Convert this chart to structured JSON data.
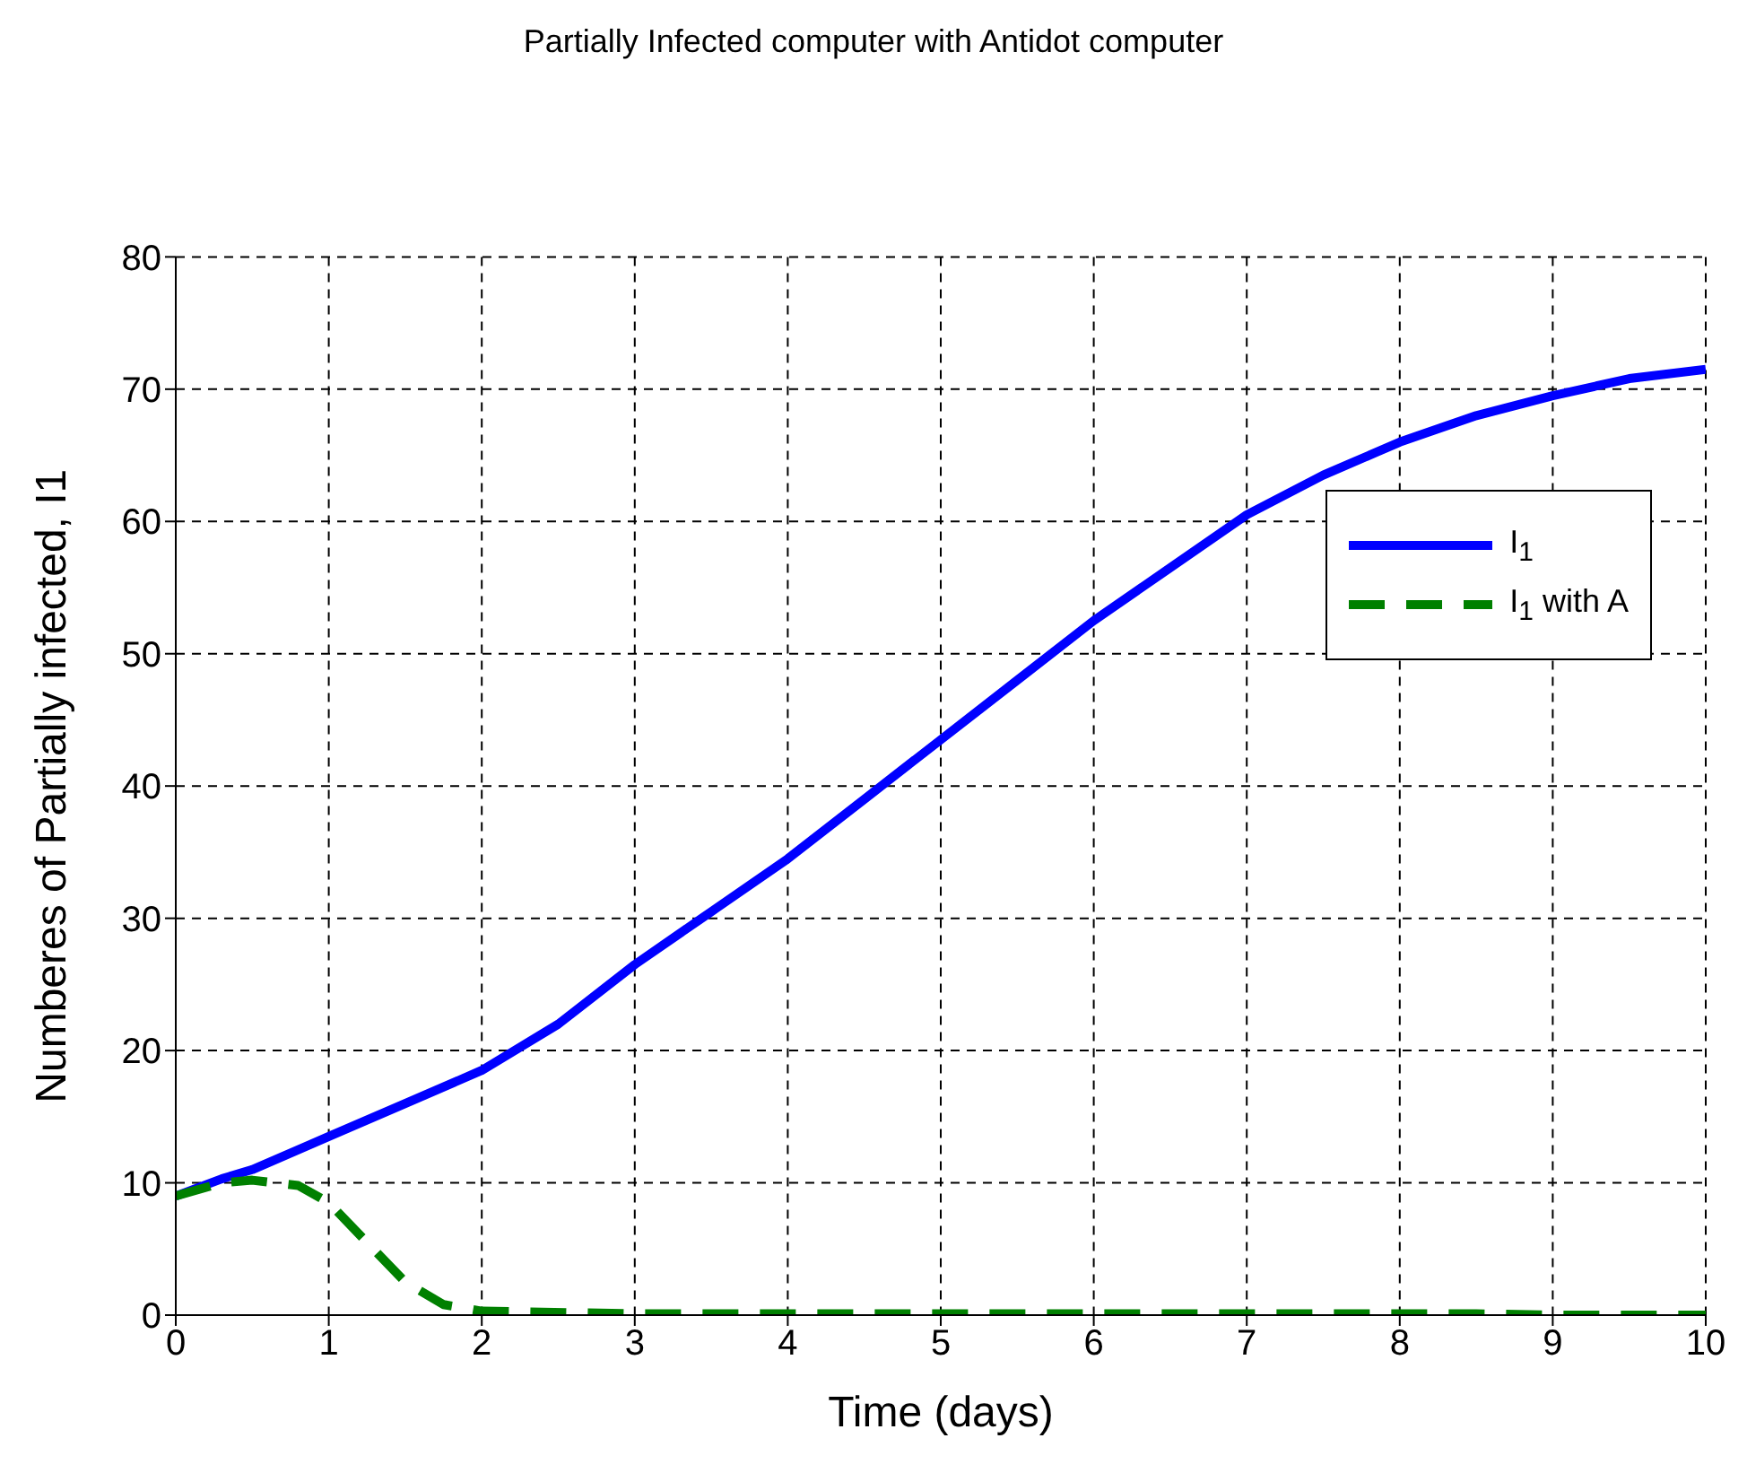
{
  "chart_data": {
    "type": "line",
    "title": "Partially Infected computer with Antidot computer",
    "xlabel": "Time (days)",
    "ylabel": "Numberes of Partially infected, I1",
    "xlim": [
      0,
      10
    ],
    "xticks": [
      0,
      1,
      2,
      3,
      4,
      5,
      6,
      7,
      8,
      9,
      10
    ],
    "ylim": [
      0,
      80
    ],
    "yticks": [
      0,
      10,
      20,
      30,
      40,
      50,
      60,
      70,
      80
    ],
    "grid": true,
    "legend": "top right",
    "marker": "none",
    "series": [
      {
        "name": "I$_{1}$",
        "color": "#0000ff",
        "line_style": "solid",
        "x": [
          0,
          0.3,
          0.5,
          1,
          1.5,
          2,
          2.5,
          3,
          3.5,
          4,
          4.5,
          5,
          5.5,
          6,
          6.5,
          7,
          7.5,
          8,
          8.5,
          9,
          9.5,
          10
        ],
        "values": [
          9,
          10.3,
          11,
          13.5,
          16,
          18.5,
          22,
          26.5,
          30.5,
          34.5,
          39,
          43.5,
          48,
          52.5,
          56.5,
          60.5,
          63.5,
          66,
          68,
          69.5,
          70.8,
          71.5
        ]
      },
      {
        "name": "I$_{1}$ with A",
        "color": "#008000",
        "line_style": "dashed",
        "x": [
          0,
          0.3,
          0.5,
          0.8,
          1,
          1.25,
          1.5,
          1.75,
          2,
          3,
          8.5,
          9,
          10
        ],
        "values": [
          9,
          10,
          10.2,
          9.8,
          8.5,
          5.5,
          2.5,
          0.8,
          0.3,
          0.1,
          0.1,
          0,
          0
        ]
      }
    ]
  }
}
